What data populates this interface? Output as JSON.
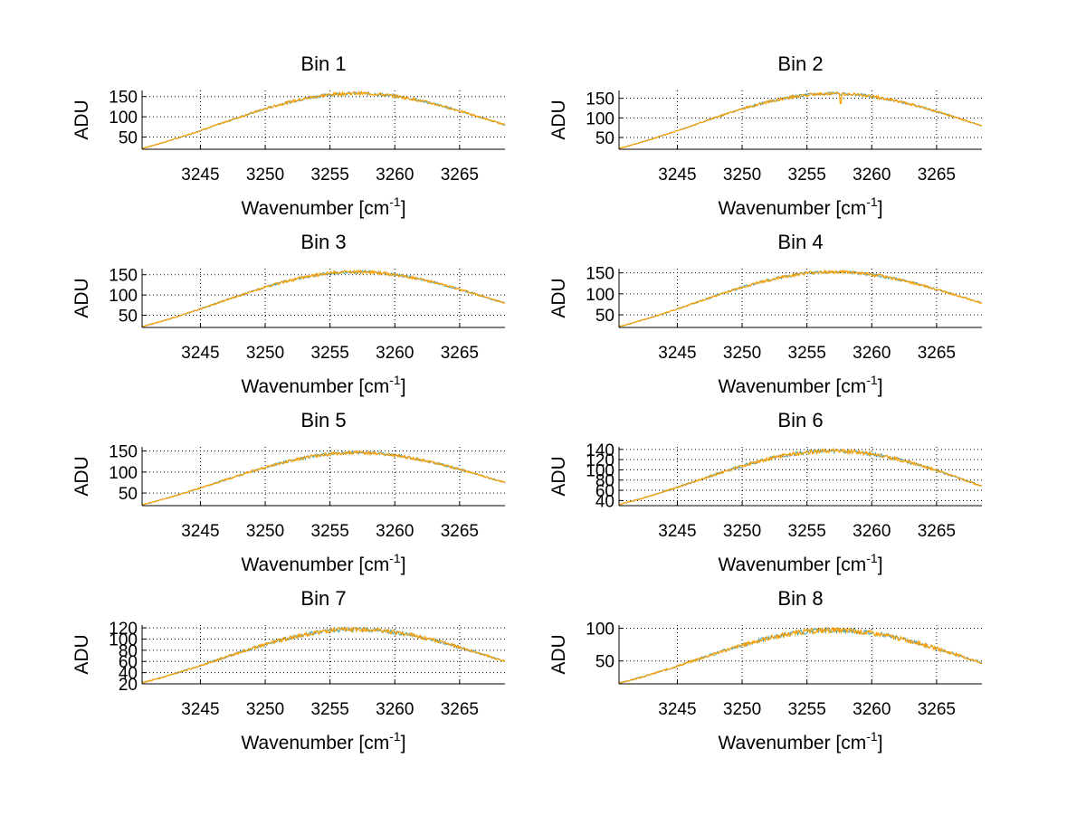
{
  "chart_data": [
    {
      "type": "line",
      "title": "Bin 1",
      "xlabel": "Wavenumber [cm",
      "xlabel_sup": "-1",
      "xlabel_suffix": "]",
      "ylabel": "ADU",
      "xlim": [
        3240.5,
        3268.5
      ],
      "ylim": [
        20,
        165
      ],
      "xticks": [
        3245,
        3250,
        3255,
        3260,
        3265
      ],
      "yticks": [
        50,
        100,
        150
      ],
      "grid": true,
      "peak": 158,
      "start": 22,
      "end": 80
    },
    {
      "type": "line",
      "title": "Bin 2",
      "xlabel": "Wavenumber [cm",
      "xlabel_sup": "-1",
      "xlabel_suffix": "]",
      "ylabel": "ADU",
      "xlim": [
        3240.5,
        3268.5
      ],
      "ylim": [
        20,
        170
      ],
      "xticks": [
        3245,
        3250,
        3255,
        3260,
        3265
      ],
      "yticks": [
        50,
        100,
        150
      ],
      "grid": true,
      "peak": 162,
      "start": 22,
      "end": 80
    },
    {
      "type": "line",
      "title": "Bin 3",
      "xlabel": "Wavenumber [cm",
      "xlabel_sup": "-1",
      "xlabel_suffix": "]",
      "ylabel": "ADU",
      "xlim": [
        3240.5,
        3268.5
      ],
      "ylim": [
        20,
        165
      ],
      "xticks": [
        3245,
        3250,
        3255,
        3260,
        3265
      ],
      "yticks": [
        50,
        100,
        150
      ],
      "grid": true,
      "peak": 157,
      "start": 22,
      "end": 80
    },
    {
      "type": "line",
      "title": "Bin 4",
      "xlabel": "Wavenumber [cm",
      "xlabel_sup": "-1",
      "xlabel_suffix": "]",
      "ylabel": "ADU",
      "xlim": [
        3240.5,
        3268.5
      ],
      "ylim": [
        20,
        160
      ],
      "xticks": [
        3245,
        3250,
        3255,
        3260,
        3265
      ],
      "yticks": [
        50,
        100,
        150
      ],
      "grid": true,
      "peak": 152,
      "start": 22,
      "end": 78
    },
    {
      "type": "line",
      "title": "Bin 5",
      "xlabel": "Wavenumber [cm",
      "xlabel_sup": "-1",
      "xlabel_suffix": "]",
      "ylabel": "ADU",
      "xlim": [
        3240.5,
        3268.5
      ],
      "ylim": [
        20,
        160
      ],
      "xticks": [
        3245,
        3250,
        3255,
        3260,
        3265
      ],
      "yticks": [
        50,
        100,
        150
      ],
      "grid": true,
      "peak": 146,
      "start": 22,
      "end": 75
    },
    {
      "type": "line",
      "title": "Bin 6",
      "xlabel": "Wavenumber [cm",
      "xlabel_sup": "-1",
      "xlabel_suffix": "]",
      "ylabel": "ADU",
      "xlim": [
        3240.5,
        3268.5
      ],
      "ylim": [
        30,
        145
      ],
      "xticks": [
        3245,
        3250,
        3255,
        3260,
        3265
      ],
      "yticks": [
        40,
        60,
        80,
        100,
        120,
        140
      ],
      "grid": true,
      "peak": 137,
      "start": 32,
      "end": 68
    },
    {
      "type": "line",
      "title": "Bin 7",
      "xlabel": "Wavenumber [cm",
      "xlabel_sup": "-1",
      "xlabel_suffix": "]",
      "ylabel": "ADU",
      "xlim": [
        3240.5,
        3268.5
      ],
      "ylim": [
        20,
        125
      ],
      "xticks": [
        3245,
        3250,
        3255,
        3260,
        3265
      ],
      "yticks": [
        20,
        40,
        60,
        80,
        100,
        120
      ],
      "grid": true,
      "peak": 117,
      "start": 22,
      "end": 60
    },
    {
      "type": "line",
      "title": "Bin 8",
      "xlabel": "Wavenumber [cm",
      "xlabel_sup": "-1",
      "xlabel_suffix": "]",
      "ylabel": "ADU",
      "xlim": [
        3240.5,
        3268.5
      ],
      "ylim": [
        15,
        105
      ],
      "xticks": [
        3245,
        3250,
        3255,
        3260,
        3265
      ],
      "yticks": [
        50,
        100
      ],
      "grid": true,
      "peak": 97,
      "start": 16,
      "end": 47
    }
  ],
  "colors": {
    "trace": "#ff9f00",
    "underlay": "#4ea0a0",
    "axis": "#000000",
    "grid": "#000000"
  }
}
